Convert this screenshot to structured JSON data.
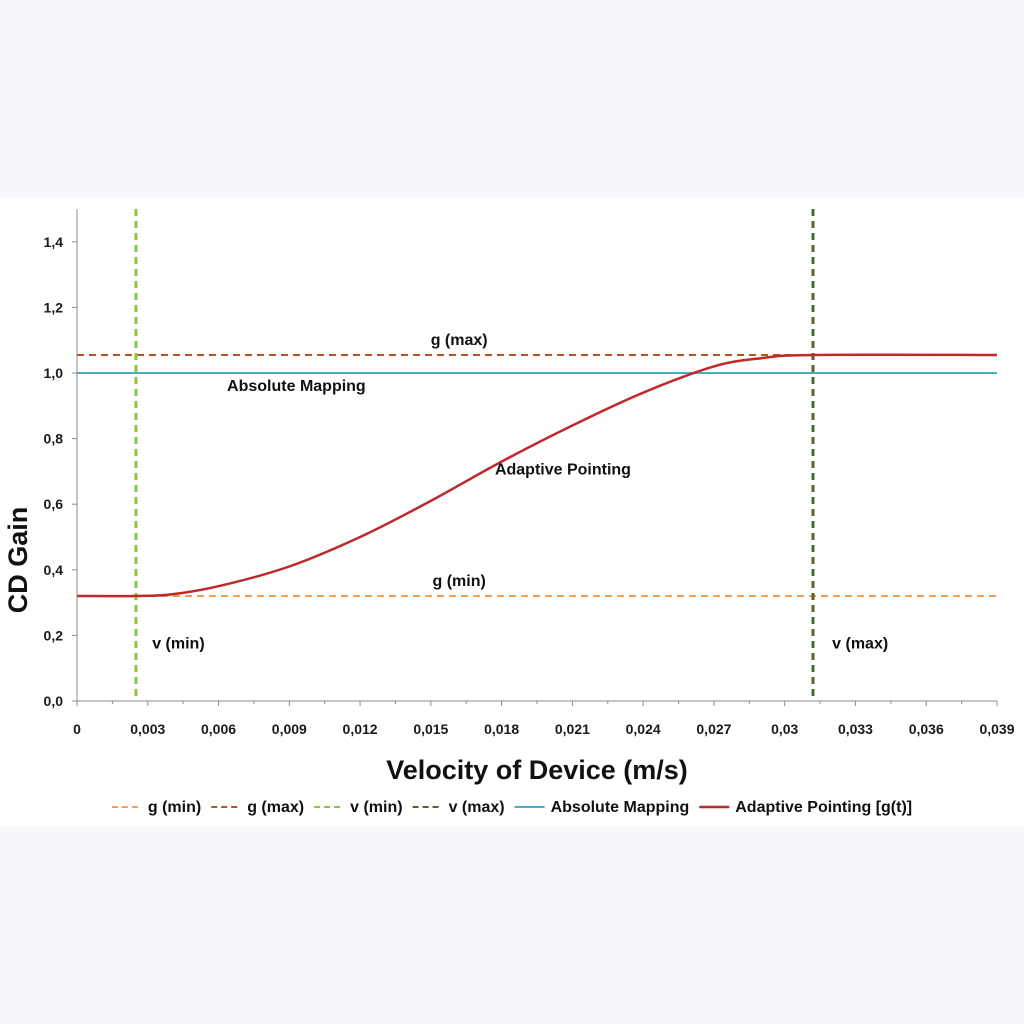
{
  "chart_data": {
    "type": "line",
    "title": "",
    "xlabel": "Velocity of Device (m/s)",
    "ylabel": "CD Gain",
    "xlim": [
      0,
      0.039
    ],
    "ylim": [
      0,
      1.5
    ],
    "x_ticks": [
      "0",
      "0,003",
      "0,006",
      "0,009",
      "0,012",
      "0,015",
      "0,018",
      "0,021",
      "0,024",
      "0,027",
      "0,03",
      "0,033",
      "0,036",
      "0,039"
    ],
    "x_tick_values": [
      0,
      0.003,
      0.006,
      0.009,
      0.012,
      0.015,
      0.018,
      0.021,
      0.024,
      0.027,
      0.03,
      0.033,
      0.036,
      0.039
    ],
    "y_ticks": [
      "0,0",
      "0,2",
      "0,4",
      "0,6",
      "0,8",
      "1,0",
      "1,2",
      "1,4"
    ],
    "y_tick_values": [
      0,
      0.2,
      0.4,
      0.6,
      0.8,
      1.0,
      1.2,
      1.4
    ],
    "grid": false,
    "legend_position": "bottom",
    "series": [
      {
        "name": "g (min)",
        "kind": "hline",
        "y": 0.32,
        "style": "dashed",
        "color": "#f0a050"
      },
      {
        "name": "g (max)",
        "kind": "hline",
        "y": 1.055,
        "style": "dashed",
        "color": "#b5541c"
      },
      {
        "name": "v (min)",
        "kind": "vline",
        "x": 0.0025,
        "style": "dashed",
        "color": "#8cc43c"
      },
      {
        "name": "v (max)",
        "kind": "vline",
        "x": 0.0312,
        "style": "dashed",
        "color": "#4a6a2a"
      },
      {
        "name": "Absolute Mapping",
        "kind": "hline",
        "y": 1.0,
        "style": "solid",
        "color": "#4bacc6"
      },
      {
        "name": "Adaptive Pointing [g(t)]",
        "kind": "line",
        "style": "solid",
        "color": "#c0282a",
        "x": [
          0,
          0.0025,
          0.004,
          0.006,
          0.009,
          0.012,
          0.015,
          0.018,
          0.021,
          0.024,
          0.027,
          0.029,
          0.0312,
          0.039
        ],
        "y": [
          0.32,
          0.32,
          0.325,
          0.35,
          0.41,
          0.5,
          0.61,
          0.73,
          0.84,
          0.94,
          1.02,
          1.045,
          1.055,
          1.055
        ]
      }
    ],
    "annotations": [
      {
        "text": "g (max)",
        "x": 0.0162,
        "y": 1.085
      },
      {
        "text": "Absolute Mapping",
        "x": 0.0093,
        "y": 0.945
      },
      {
        "text": "Adaptive Pointing",
        "x": 0.0206,
        "y": 0.69
      },
      {
        "text": "g (min)",
        "x": 0.0162,
        "y": 0.35
      },
      {
        "text": "v (min)",
        "x": 0.0043,
        "y": 0.16
      },
      {
        "text": "v (max)",
        "x": 0.0332,
        "y": 0.16
      }
    ]
  }
}
